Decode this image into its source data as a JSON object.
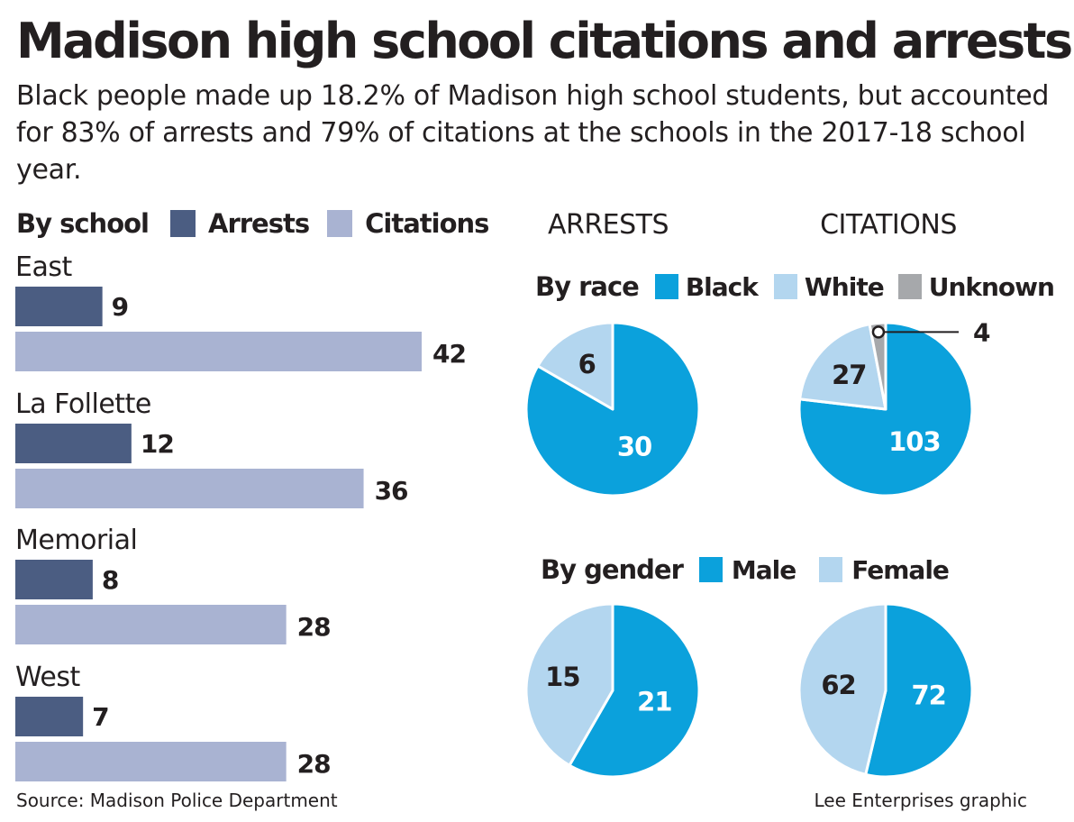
{
  "title": "Madison high school citations and arrests",
  "subtitle": "Black people made up 18.2% of Madison high school students, but accounted for 83% of arrests and 79% of citations at the schools in the 2017-18 school year.",
  "source": "Source: Madison Police Department",
  "credit": "Lee Enterprises graphic",
  "colors": {
    "arrests": "#4b5d82",
    "citations": "#a9b3d2",
    "black": "#0ba1dc",
    "white": "#b3d6ef",
    "unknown": "#a6a8ab",
    "male": "#0ba1dc",
    "female": "#b3d6ef"
  },
  "chart_data": [
    {
      "type": "bar",
      "title": "By school",
      "orientation": "horizontal",
      "categories": [
        "East",
        "La Follette",
        "Memorial",
        "West"
      ],
      "series": [
        {
          "name": "Arrests",
          "values": [
            9,
            12,
            8,
            7
          ]
        },
        {
          "name": "Citations",
          "values": [
            42,
            36,
            28,
            28
          ]
        }
      ]
    },
    {
      "type": "pie",
      "group": "By race",
      "column": "ARRESTS",
      "categories": [
        "Black",
        "White"
      ],
      "values": [
        30,
        6
      ]
    },
    {
      "type": "pie",
      "group": "By race",
      "column": "CITATIONS",
      "categories": [
        "Black",
        "White",
        "Unknown"
      ],
      "values": [
        103,
        27,
        4
      ]
    },
    {
      "type": "pie",
      "group": "By gender",
      "column": "ARRESTS",
      "categories": [
        "Male",
        "Female"
      ],
      "values": [
        21,
        15
      ]
    },
    {
      "type": "pie",
      "group": "By gender",
      "column": "CITATIONS",
      "categories": [
        "Male",
        "Female"
      ],
      "values": [
        72,
        62
      ]
    }
  ],
  "race_legend": {
    "title": "By race",
    "items": [
      "Black",
      "White",
      "Unknown"
    ]
  },
  "gender_legend": {
    "title": "By gender",
    "items": [
      "Male",
      "Female"
    ]
  },
  "column_headers": [
    "ARRESTS",
    "CITATIONS"
  ]
}
